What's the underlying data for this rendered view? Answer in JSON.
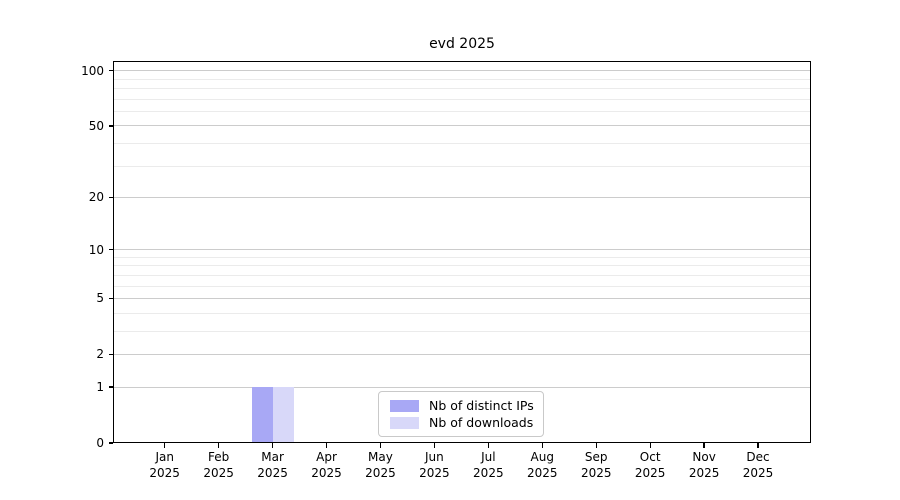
{
  "title": "evd 2025",
  "chart_data": {
    "type": "bar",
    "title": "evd 2025",
    "categories": [
      "Jan 2025",
      "Feb 2025",
      "Mar 2025",
      "Apr 2025",
      "May 2025",
      "Jun 2025",
      "Jul 2025",
      "Aug 2025",
      "Sep 2025",
      "Oct 2025",
      "Nov 2025",
      "Dec 2025"
    ],
    "x_tick_months": [
      "Jan",
      "Feb",
      "Mar",
      "Apr",
      "May",
      "Jun",
      "Jul",
      "Aug",
      "Sep",
      "Oct",
      "Nov",
      "Dec"
    ],
    "x_tick_year": "2025",
    "series": [
      {
        "name": "Nb of distinct IPs",
        "color": "#a8a8f5",
        "values": [
          0,
          0,
          1,
          0,
          0,
          0,
          0,
          0,
          0,
          0,
          0,
          0
        ]
      },
      {
        "name": "Nb of downloads",
        "color": "#d8d8f9",
        "values": [
          0,
          0,
          1,
          0,
          0,
          0,
          0,
          0,
          0,
          0,
          0,
          0
        ]
      }
    ],
    "y_axis": {
      "scale": "log1p",
      "major_ticks": [
        0,
        1,
        2,
        5,
        10,
        20,
        50,
        100
      ],
      "minor_ticks": [
        3,
        4,
        6,
        7,
        8,
        9,
        30,
        40,
        60,
        70,
        80,
        90
      ],
      "range": [
        0,
        113
      ]
    },
    "grid": true,
    "legend": {
      "position": "inside-bottom-center",
      "items": [
        "Nb of distinct IPs",
        "Nb of downloads"
      ]
    },
    "colors": {
      "grid_major": "#cccccc",
      "grid_minor": "#ebebeb",
      "axis": "#000000",
      "background": "#ffffff"
    }
  }
}
